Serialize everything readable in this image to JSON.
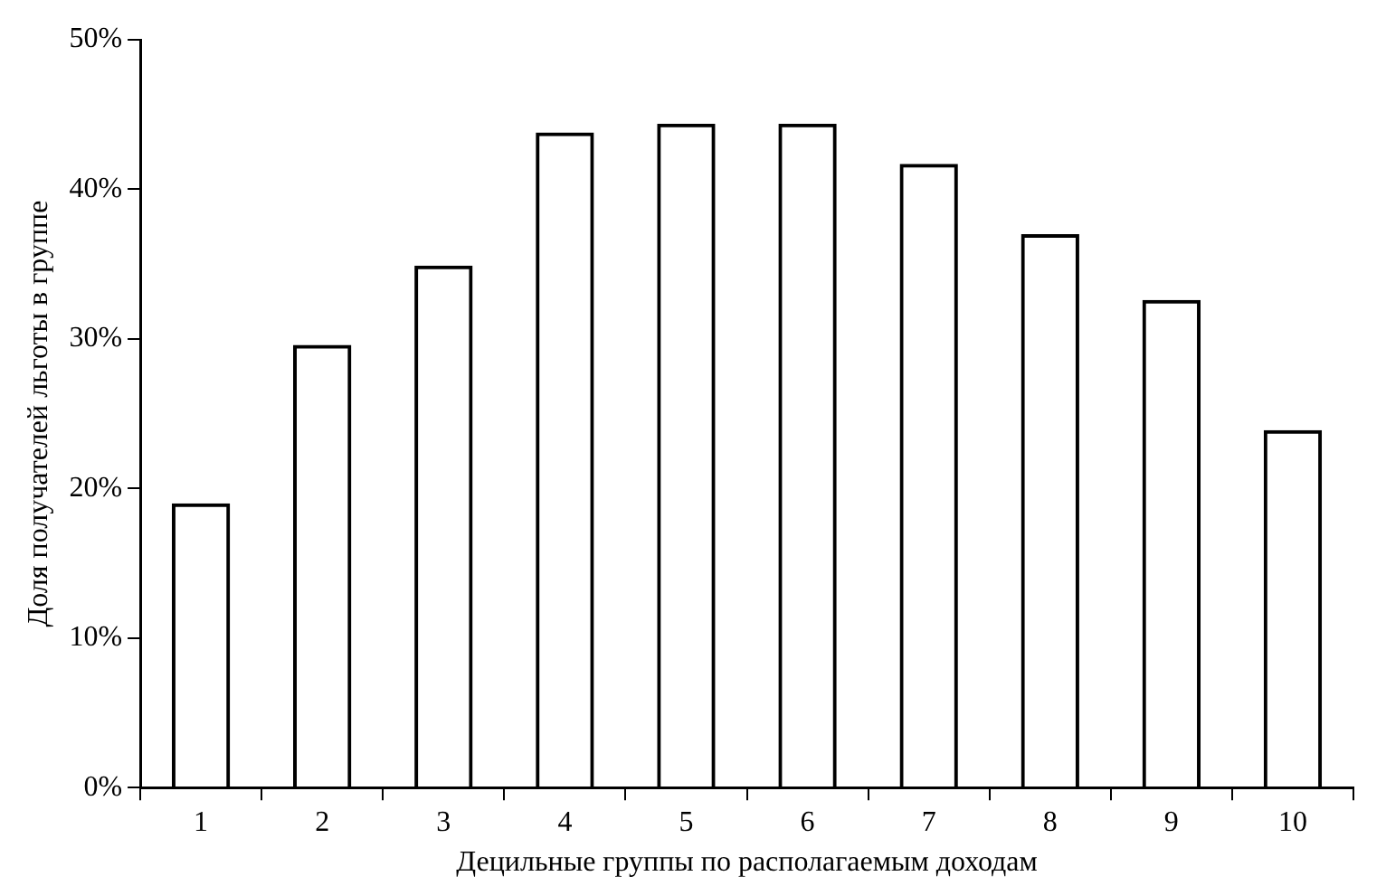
{
  "chart_data": {
    "type": "bar",
    "xlabel": "Децильные группы по располагаемым доходам",
    "ylabel": "Доля получателей льготы в группе",
    "categories": [
      "1",
      "2",
      "3",
      "4",
      "5",
      "6",
      "7",
      "8",
      "9",
      "10"
    ],
    "values": [
      19.0,
      29.6,
      34.9,
      43.8,
      44.4,
      44.4,
      41.7,
      37.0,
      32.6,
      23.9
    ],
    "color": "#000000",
    "ylim": [
      0,
      50
    ],
    "yticks": [
      {
        "value": 0,
        "label": "0%"
      },
      {
        "value": 10,
        "label": "10%"
      },
      {
        "value": 20,
        "label": "20%"
      },
      {
        "value": 30,
        "label": "30%"
      },
      {
        "value": 40,
        "label": "40%"
      },
      {
        "value": 50,
        "label": "50%"
      }
    ],
    "grid": false,
    "legend": false
  }
}
